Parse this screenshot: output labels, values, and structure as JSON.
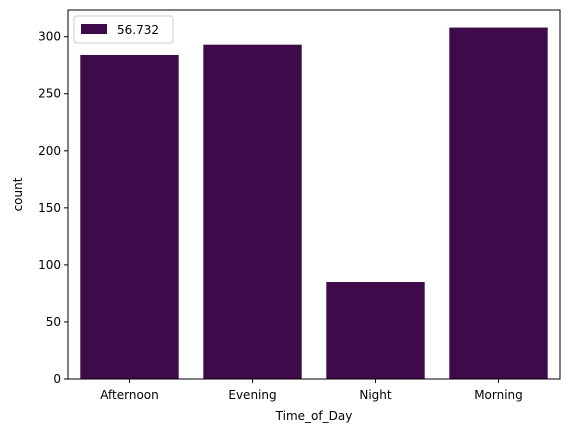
{
  "chart_data": {
    "type": "bar",
    "categories": [
      "Afternoon",
      "Evening",
      "Night",
      "Morning"
    ],
    "series": [
      {
        "name": "56.732",
        "values": [
          284,
          293,
          85,
          308
        ],
        "color": "#3f0a4a"
      }
    ],
    "xlabel": "Time_of_Day",
    "ylabel": "count",
    "ylim": [
      0,
      323.4
    ],
    "yticks": [
      0,
      50,
      100,
      150,
      200,
      250,
      300
    ],
    "grid": false,
    "legend": "top-left"
  }
}
